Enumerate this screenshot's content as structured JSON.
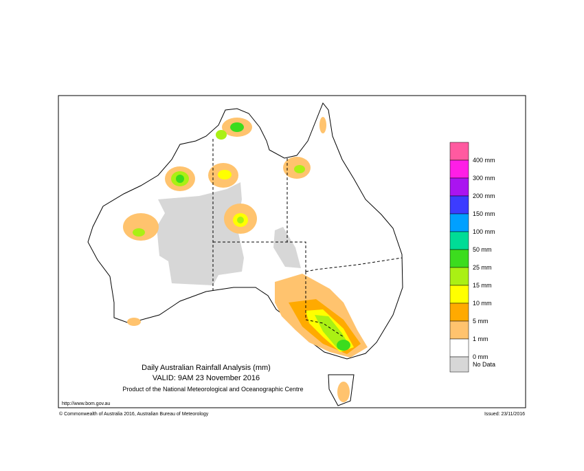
{
  "title": "Daily Australian Rainfall Analysis (mm)",
  "valid": "VALID: 9AM 23 November 2016",
  "product": "Product of the National Meteorological and Oceanographic Centre",
  "url": "http://www.bom.gov.au",
  "copyright": "© Commonwealth of Australia 2016, Australian Bureau of Meteorology",
  "issued": "Issued: 23/11/2016",
  "legend": [
    {
      "label": "400 mm",
      "color": "#ff5aa0"
    },
    {
      "label": "300 mm",
      "color": "#ff1ee6"
    },
    {
      "label": "200 mm",
      "color": "#aa14f0"
    },
    {
      "label": "150 mm",
      "color": "#3c3cff"
    },
    {
      "label": "100 mm",
      "color": "#00a0ff"
    },
    {
      "label": "50 mm",
      "color": "#00dc96"
    },
    {
      "label": "25 mm",
      "color": "#3cdc1e"
    },
    {
      "label": "15 mm",
      "color": "#aaf014"
    },
    {
      "label": "10 mm",
      "color": "#ffff00"
    },
    {
      "label": "5 mm",
      "color": "#ffaa00"
    },
    {
      "label": "1 mm",
      "color": "#ffc36e"
    },
    {
      "label": "0 mm",
      "color": "#ffffff"
    },
    {
      "label": "No Data",
      "color": "#d7d7d7"
    }
  ]
}
